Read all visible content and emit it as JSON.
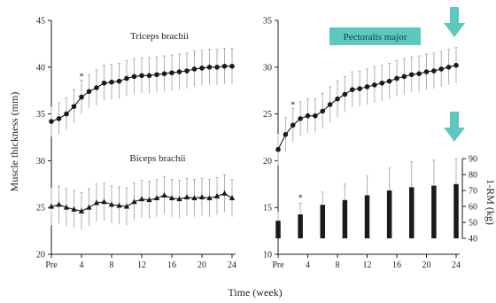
{
  "figure": {
    "y_axis_title": "Muscle thickness (mm)",
    "x_axis_title": "Time (week)",
    "right_axis_title": "1-RM (kg)",
    "colors": {
      "ink": "#1a1a1a",
      "error_bar": "#b0b0b0",
      "pectoralis_box": "#5cc8be",
      "arrow": "#5cc8be"
    },
    "icons": [
      "down-arrow-icon",
      "down-arrow-icon"
    ]
  },
  "chart_data": [
    {
      "type": "line",
      "panel": "left",
      "x_tick_labels": [
        "Pre",
        "4",
        "8",
        "12",
        "16",
        "20",
        "24"
      ],
      "x_ticks": [
        0,
        4,
        8,
        12,
        16,
        20,
        24
      ],
      "xlim": [
        0,
        24
      ],
      "ylim": [
        20,
        45
      ],
      "y_ticks": [
        20,
        25,
        30,
        35,
        40,
        45
      ],
      "grid": false,
      "series": [
        {
          "name": "Triceps brachii",
          "marker": "circle",
          "x": [
            0,
            1,
            2,
            3,
            4,
            5,
            6,
            7,
            8,
            9,
            10,
            11,
            12,
            13,
            14,
            15,
            16,
            17,
            18,
            19,
            20,
            21,
            22,
            23,
            24
          ],
          "values": [
            34.2,
            34.5,
            35.0,
            35.8,
            36.8,
            37.4,
            37.8,
            38.3,
            38.4,
            38.5,
            38.8,
            39.0,
            39.1,
            39.1,
            39.2,
            39.3,
            39.4,
            39.5,
            39.6,
            39.8,
            39.9,
            40.0,
            40.0,
            40.1,
            40.1
          ],
          "error": [
            1.6,
            1.7,
            1.7,
            1.8,
            1.8,
            1.8,
            1.9,
            1.9,
            1.9,
            1.9,
            1.9,
            1.9,
            1.9,
            1.9,
            1.9,
            1.9,
            1.9,
            1.9,
            1.9,
            1.9,
            1.9,
            1.9,
            1.9,
            1.9,
            1.9
          ],
          "annotations": [
            {
              "x": 4,
              "text": "*"
            }
          ]
        },
        {
          "name": "Biceps brachii",
          "marker": "triangle",
          "x": [
            0,
            1,
            2,
            3,
            4,
            5,
            6,
            7,
            8,
            9,
            10,
            11,
            12,
            13,
            14,
            15,
            16,
            17,
            18,
            19,
            20,
            21,
            22,
            23,
            24
          ],
          "values": [
            25.1,
            25.3,
            25.0,
            24.8,
            24.6,
            25.0,
            25.5,
            25.6,
            25.3,
            25.2,
            25.1,
            25.6,
            25.9,
            25.8,
            26.0,
            26.3,
            26.0,
            25.9,
            26.1,
            26.0,
            26.1,
            26.0,
            26.2,
            26.5,
            26.0
          ],
          "error": [
            2.0,
            2.0,
            2.0,
            2.0,
            2.0,
            2.0,
            2.0,
            2.0,
            2.0,
            2.0,
            2.0,
            2.0,
            2.0,
            2.0,
            2.0,
            2.0,
            2.0,
            2.0,
            2.0,
            2.0,
            2.0,
            2.0,
            2.0,
            2.0,
            2.0
          ]
        }
      ]
    },
    {
      "type": "line",
      "panel": "right",
      "x_tick_labels": [
        "Pre",
        "4",
        "8",
        "12",
        "16",
        "20",
        "24"
      ],
      "x_ticks": [
        0,
        4,
        8,
        12,
        16,
        20,
        24
      ],
      "xlim": [
        0,
        24
      ],
      "ylim": [
        10,
        35
      ],
      "y_ticks": [
        10,
        15,
        20,
        25,
        30,
        35
      ],
      "grid": false,
      "series": [
        {
          "name": "Pectoralis major",
          "marker": "circle",
          "x": [
            0,
            1,
            2,
            3,
            4,
            5,
            6,
            7,
            8,
            9,
            10,
            11,
            12,
            13,
            14,
            15,
            16,
            17,
            18,
            19,
            20,
            21,
            22,
            23,
            24
          ],
          "values": [
            21.2,
            22.8,
            23.8,
            24.5,
            24.8,
            24.8,
            25.3,
            26.0,
            26.6,
            27.1,
            27.6,
            27.7,
            27.9,
            28.1,
            28.3,
            28.5,
            28.8,
            29.0,
            29.2,
            29.3,
            29.5,
            29.6,
            29.8,
            30.0,
            30.2
          ],
          "error": [
            1.7,
            1.8,
            1.8,
            1.8,
            1.8,
            1.8,
            1.9,
            1.9,
            1.9,
            1.9,
            1.9,
            1.9,
            1.9,
            1.9,
            1.9,
            1.9,
            1.9,
            1.9,
            1.9,
            1.9,
            1.9,
            1.9,
            1.9,
            1.9,
            1.9
          ],
          "annotations": [
            {
              "x": 2,
              "text": "*"
            }
          ]
        }
      ]
    },
    {
      "type": "bar",
      "panel": "right-inset",
      "x": [
        0,
        3,
        6,
        9,
        12,
        15,
        18,
        21,
        24
      ],
      "values": [
        51,
        55,
        61,
        64,
        67,
        70,
        72,
        73,
        74
      ],
      "error": [
        6,
        7,
        8,
        10,
        12,
        14,
        16,
        16,
        16
      ],
      "ylim": [
        40,
        90
      ],
      "y_ticks": [
        40,
        50,
        60,
        70,
        80,
        90
      ],
      "ylabel": "1-RM (kg)",
      "annotations": [
        {
          "x": 3,
          "text": "*"
        }
      ]
    }
  ]
}
